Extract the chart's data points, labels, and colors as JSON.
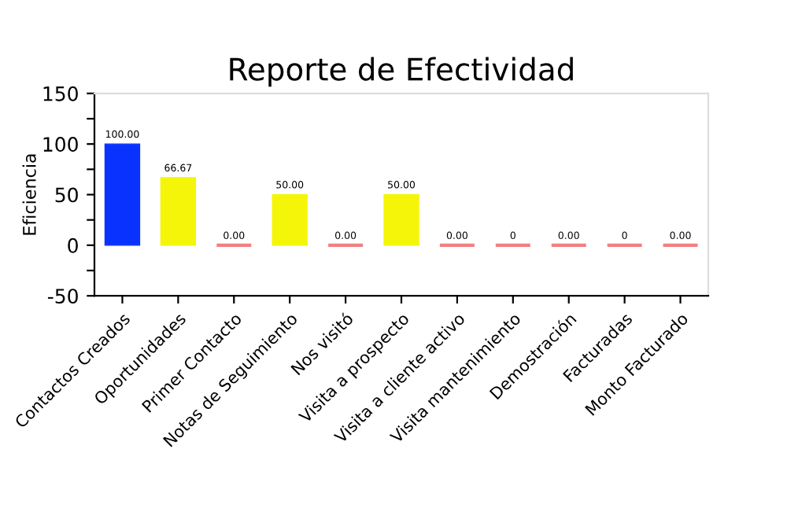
{
  "chart_data": {
    "type": "bar",
    "title": "Reporte de Efectividad",
    "ylabel": "Eficiencia",
    "categories": [
      "Contactos Creados",
      "Oportunidades",
      "Primer Contacto",
      "Notas de Seguimiento",
      "Nos visitó",
      "Visita a prospecto",
      "Visita a cliente activo",
      "Visita mantenimiento",
      "Demostración",
      "Facturadas",
      "Monto Facturado"
    ],
    "values": [
      100,
      66.67,
      0,
      50,
      0,
      50,
      0,
      0,
      0,
      0,
      0
    ],
    "value_labels": [
      "100.00",
      "66.67",
      "0.00",
      "50.00",
      "0.00",
      "50.00",
      "0.00",
      "0",
      "0.00",
      "0",
      "0.00"
    ],
    "colors": [
      "#0a32ff",
      "#f5f50a",
      "#f08080",
      "#f5f50a",
      "#f08080",
      "#f5f50a",
      "#f08080",
      "#f08080",
      "#f08080",
      "#f08080",
      "#f08080"
    ],
    "ylim": [
      -50,
      150
    ],
    "yticks": [
      -50,
      {
        "value": -25,
        "label": null
      },
      0,
      {
        "value": 25,
        "label": null
      },
      50,
      {
        "value": 75,
        "label": null
      },
      100,
      {
        "value": 125,
        "label": null
      },
      150
    ],
    "grid": false,
    "legend": false
  }
}
